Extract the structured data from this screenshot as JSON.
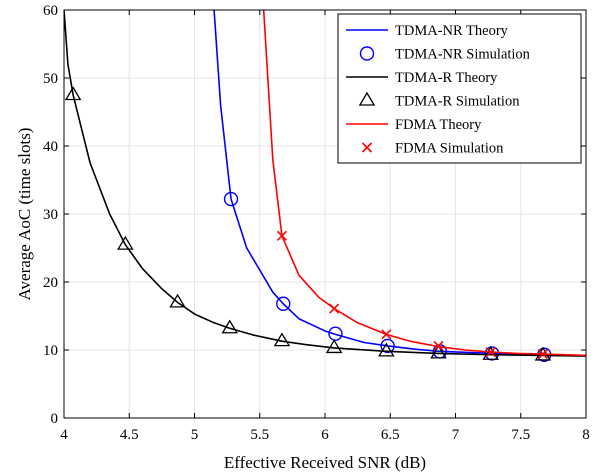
{
  "chart_data": {
    "type": "line",
    "title": "",
    "xlabel": "Effective Received SNR (dB)",
    "ylabel": "Average AoC (time slots)",
    "xlim": [
      4,
      8
    ],
    "ylim": [
      0,
      60
    ],
    "xticks": [
      4,
      4.5,
      5,
      5.5,
      6,
      6.5,
      7,
      7.5,
      8
    ],
    "xtick_labels": [
      "4",
      "4.5",
      "5",
      "5.5",
      "6",
      "6.5",
      "7",
      "7.5",
      "8"
    ],
    "yticks": [
      0,
      10,
      20,
      30,
      40,
      50,
      60
    ],
    "ytick_labels": [
      "0",
      "10",
      "20",
      "30",
      "40",
      "50",
      "60"
    ],
    "grid": true,
    "legend_position": "top-right",
    "series": [
      {
        "name": "TDMA-NR Theory",
        "kind": "line",
        "color": "#0000ff",
        "x": [
          5.15,
          5.2,
          5.28,
          5.4,
          5.6,
          5.68,
          5.8,
          6.0,
          6.08,
          6.3,
          6.48,
          6.7,
          6.88,
          7.28,
          7.68,
          8.0
        ],
        "y": [
          60,
          46,
          32.2,
          25,
          18.5,
          16.8,
          14.6,
          12.8,
          12.3,
          11.1,
          10.6,
          10.1,
          9.8,
          9.5,
          9.3,
          9.2
        ]
      },
      {
        "name": "TDMA-NR Simulation",
        "kind": "marker",
        "marker": "circle",
        "color": "#0000ff",
        "x": [
          5.28,
          5.68,
          6.08,
          6.48,
          6.88,
          7.28,
          7.68
        ],
        "y": [
          32.2,
          16.8,
          12.4,
          10.6,
          9.8,
          9.5,
          9.3
        ]
      },
      {
        "name": "TDMA-R Theory",
        "kind": "line",
        "color": "#000000",
        "x": [
          4.0,
          4.03,
          4.07,
          4.2,
          4.35,
          4.47,
          4.6,
          4.75,
          4.87,
          5.0,
          5.15,
          5.27,
          5.45,
          5.67,
          5.85,
          6.07,
          6.47,
          6.87,
          7.27,
          7.67,
          8.0
        ],
        "y": [
          60,
          52,
          47.5,
          37.5,
          30,
          25.5,
          22,
          19,
          17,
          15.3,
          14,
          13.2,
          12.2,
          11.3,
          10.8,
          10.3,
          9.8,
          9.5,
          9.3,
          9.2,
          9.1
        ]
      },
      {
        "name": "TDMA-R Simulation",
        "kind": "marker",
        "marker": "triangle",
        "color": "#000000",
        "x": [
          4.07,
          4.47,
          4.87,
          5.27,
          5.67,
          6.07,
          6.47,
          6.87,
          7.27,
          7.67
        ],
        "y": [
          47.5,
          25.5,
          17,
          13.2,
          11.3,
          10.3,
          9.8,
          9.5,
          9.3,
          9.2
        ]
      },
      {
        "name": "FDMA Theory",
        "kind": "line",
        "color": "#ff0000",
        "x": [
          5.53,
          5.6,
          5.67,
          5.8,
          5.95,
          6.07,
          6.25,
          6.47,
          6.65,
          6.87,
          7.07,
          7.27,
          7.47,
          7.67,
          8.0
        ],
        "y": [
          60,
          38,
          26.8,
          21,
          17.8,
          16.1,
          14,
          12.3,
          11.3,
          10.5,
          10.0,
          9.7,
          9.5,
          9.4,
          9.2
        ]
      },
      {
        "name": "FDMA Simulation",
        "kind": "marker",
        "marker": "x",
        "color": "#ff0000",
        "x": [
          5.67,
          6.07,
          6.47,
          6.87,
          7.27,
          7.67
        ],
        "y": [
          26.8,
          16.1,
          12.3,
          10.6,
          9.7,
          9.4
        ]
      }
    ]
  }
}
